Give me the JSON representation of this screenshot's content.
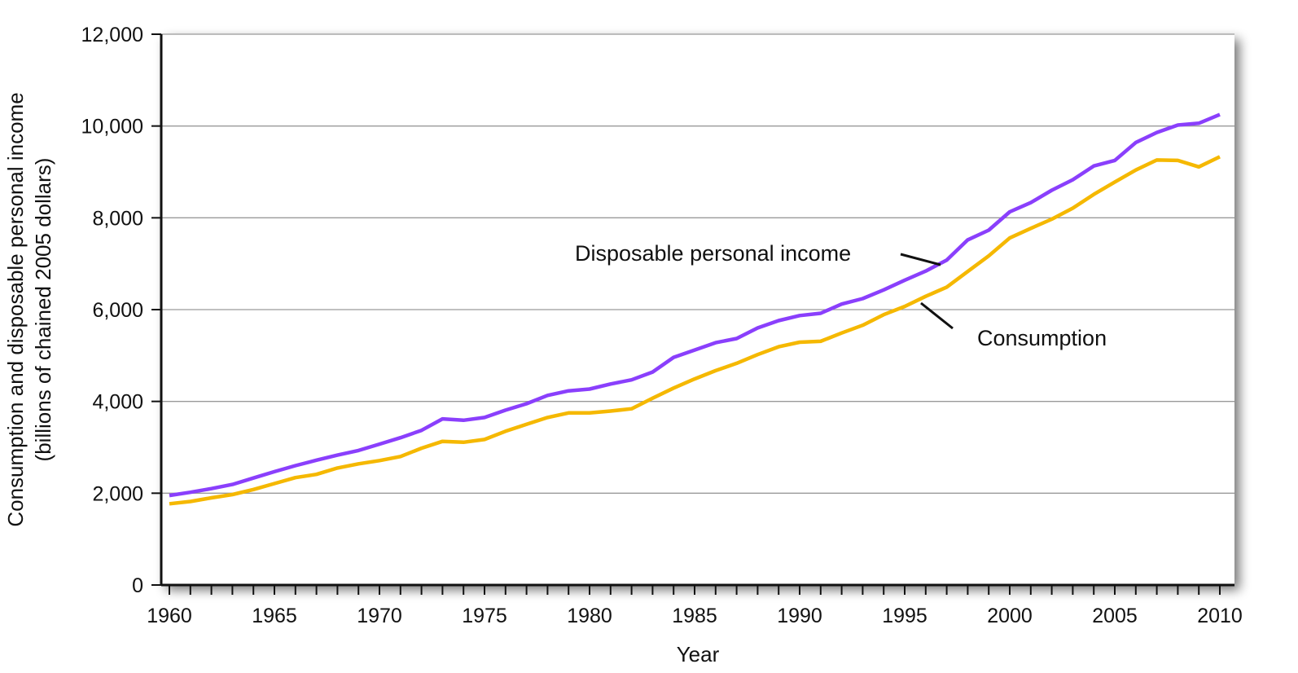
{
  "chart_data": {
    "type": "line",
    "xlabel": "Year",
    "ylabel_line1": "Consumption and disposable personal income",
    "ylabel_line2": "(billions of chained 2005 dollars)",
    "xlim": [
      1960,
      2010
    ],
    "ylim": [
      0,
      12000
    ],
    "x_ticks": [
      1960,
      1965,
      1970,
      1975,
      1980,
      1985,
      1990,
      1995,
      2000,
      2005,
      2010
    ],
    "y_ticks": [
      0,
      2000,
      4000,
      6000,
      8000,
      10000,
      12000
    ],
    "y_tick_labels": [
      "0",
      "2,000",
      "4,000",
      "6,000",
      "8,000",
      "10,000",
      "12,000"
    ],
    "grid": "horizontal",
    "x": [
      1960,
      1961,
      1962,
      1963,
      1964,
      1965,
      1966,
      1967,
      1968,
      1969,
      1970,
      1971,
      1972,
      1973,
      1974,
      1975,
      1976,
      1977,
      1978,
      1979,
      1980,
      1981,
      1982,
      1983,
      1984,
      1985,
      1986,
      1987,
      1988,
      1989,
      1990,
      1991,
      1992,
      1993,
      1994,
      1995,
      1996,
      1997,
      1998,
      1999,
      2000,
      2001,
      2002,
      2003,
      2004,
      2005,
      2006,
      2007,
      2008,
      2009,
      2010
    ],
    "series": [
      {
        "name": "Disposable personal income",
        "color": "#8a3ffc",
        "values": [
          1950,
          2020,
          2100,
          2190,
          2330,
          2470,
          2600,
          2720,
          2830,
          2930,
          3070,
          3210,
          3370,
          3620,
          3590,
          3650,
          3810,
          3950,
          4130,
          4230,
          4270,
          4380,
          4470,
          4640,
          4960,
          5120,
          5280,
          5370,
          5600,
          5760,
          5870,
          5920,
          6120,
          6240,
          6430,
          6640,
          6840,
          7080,
          7520,
          7730,
          8130,
          8330,
          8600,
          8830,
          9130,
          9250,
          9640,
          9860,
          10020,
          10060,
          10250
        ]
      },
      {
        "name": "Consumption",
        "color": "#f5b800",
        "values": [
          1770,
          1820,
          1900,
          1970,
          2080,
          2210,
          2340,
          2410,
          2550,
          2640,
          2710,
          2800,
          2980,
          3130,
          3110,
          3170,
          3350,
          3500,
          3650,
          3750,
          3750,
          3790,
          3840,
          4070,
          4290,
          4490,
          4670,
          4830,
          5020,
          5190,
          5290,
          5310,
          5490,
          5660,
          5890,
          6070,
          6290,
          6490,
          6830,
          7170,
          7560,
          7770,
          7970,
          8210,
          8510,
          8780,
          9040,
          9260,
          9250,
          9110,
          9330
        ]
      }
    ],
    "annotations": [
      {
        "text": "Disposable personal income",
        "series": 0
      },
      {
        "text": "Consumption",
        "series": 1
      }
    ]
  }
}
